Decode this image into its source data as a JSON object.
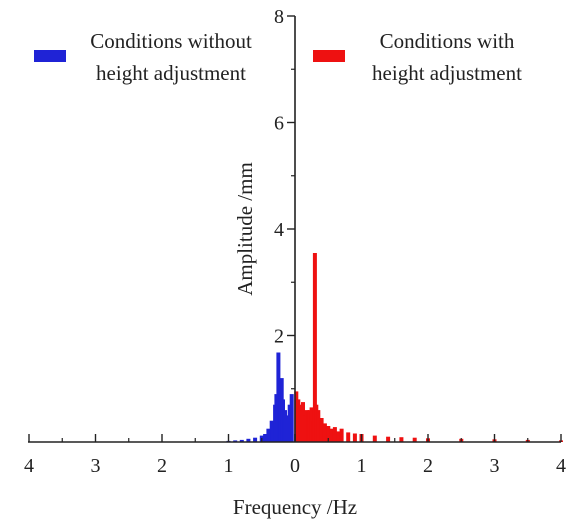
{
  "chart_data": {
    "type": "bar",
    "xlabel": "Frequency /Hz",
    "ylabel": "Amplitude /mm",
    "xlim_left": [
      0,
      4
    ],
    "xlim_right": [
      0,
      4
    ],
    "ylim": [
      0,
      8
    ],
    "x_ticks_left": [
      "4",
      "3",
      "2",
      "1",
      "0"
    ],
    "x_ticks_right": [
      "0",
      "1",
      "2",
      "3",
      "4"
    ],
    "y_ticks": [
      "2",
      "4",
      "6",
      "8"
    ],
    "grid": false,
    "legend_placement": "top",
    "series": [
      {
        "name_lines": [
          "Conditions without",
          "height adjustment"
        ],
        "side": "left",
        "color": "#1f23d6",
        "x": [
          0.05,
          0.08,
          0.1,
          0.12,
          0.15,
          0.18,
          0.2,
          0.22,
          0.25,
          0.28,
          0.3,
          0.35,
          0.4,
          0.45,
          0.5,
          0.6,
          0.7,
          0.8,
          0.9,
          1.0
        ],
        "values": [
          0.9,
          0.7,
          0.45,
          0.5,
          0.6,
          0.8,
          1.2,
          1.0,
          1.68,
          0.9,
          0.7,
          0.4,
          0.25,
          0.15,
          0.12,
          0.08,
          0.06,
          0.04,
          0.03,
          0.02
        ]
      },
      {
        "name_lines": [
          "Conditions with",
          "height adjustment"
        ],
        "side": "right",
        "color": "#ee1111",
        "x": [
          0.02,
          0.05,
          0.08,
          0.1,
          0.12,
          0.15,
          0.18,
          0.2,
          0.22,
          0.25,
          0.28,
          0.3,
          0.32,
          0.35,
          0.4,
          0.45,
          0.5,
          0.55,
          0.6,
          0.65,
          0.7,
          0.8,
          0.9,
          1.0,
          1.2,
          1.4,
          1.6,
          1.8,
          2.0,
          2.5,
          3.0,
          3.5,
          4.0
        ],
        "values": [
          0.95,
          0.8,
          0.7,
          0.6,
          0.75,
          0.5,
          0.6,
          0.55,
          0.6,
          0.65,
          0.4,
          3.55,
          0.7,
          0.6,
          0.45,
          0.35,
          0.3,
          0.25,
          0.28,
          0.2,
          0.25,
          0.18,
          0.16,
          0.15,
          0.12,
          0.1,
          0.09,
          0.08,
          0.07,
          0.06,
          0.05,
          0.04,
          0.03
        ]
      }
    ]
  }
}
